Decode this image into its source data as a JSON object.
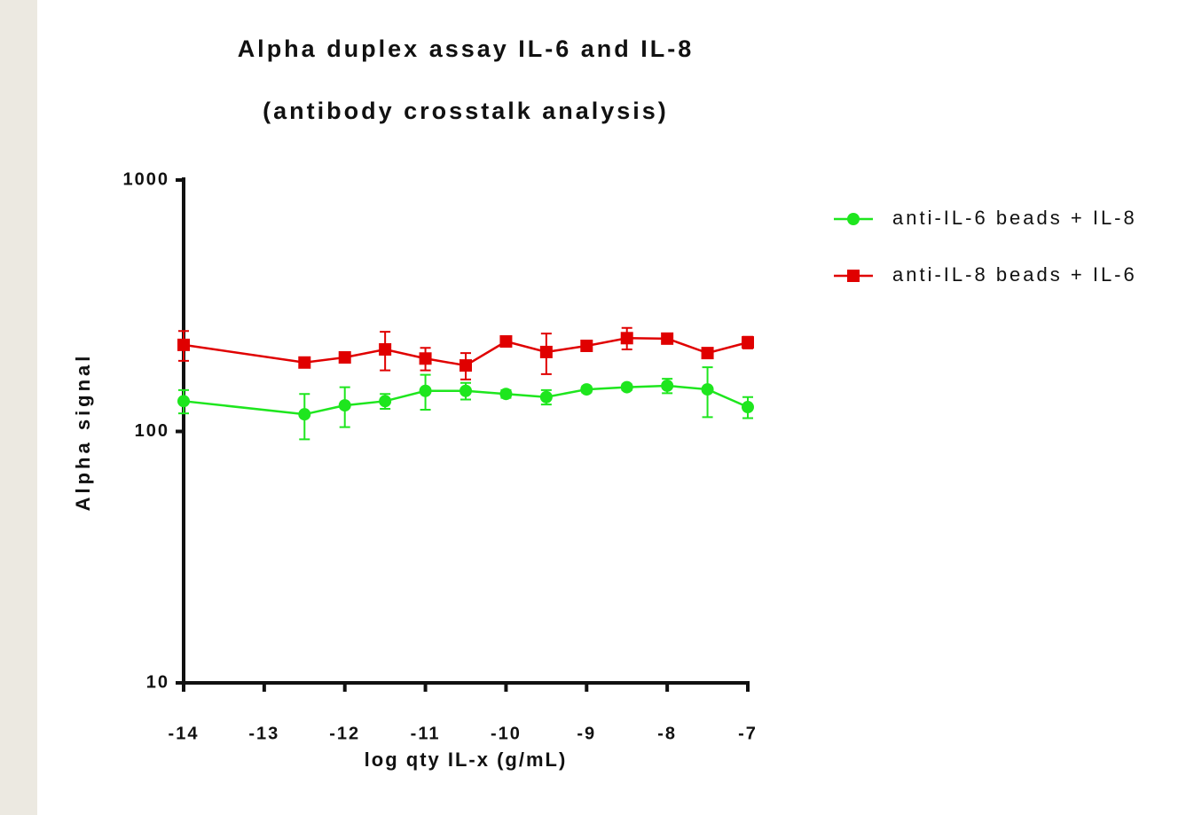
{
  "chart_data": {
    "type": "line",
    "title": [
      "Alpha duplex assay IL-6 and IL-8",
      "(antibody crosstalk analysis)"
    ],
    "x_label": "log qty IL-x (g/mL)",
    "y_label": "Alpha signal",
    "x": [
      -14,
      -12.5,
      -12,
      -11.5,
      -11,
      -10.5,
      -10,
      -9.5,
      -9,
      -8.5,
      -8,
      -7.5,
      -7
    ],
    "series": [
      {
        "name": "anti-IL-6 beads + IL-8",
        "color": "#1ee61e",
        "marker": "circle",
        "values": [
          132,
          117,
          127,
          132,
          145,
          145,
          141,
          137,
          147,
          150,
          152,
          147,
          125
        ],
        "errors": [
          14,
          24,
          23,
          9,
          23,
          11,
          5,
          9,
          4,
          4,
          10,
          33,
          12
        ]
      },
      {
        "name": "anti-IL-8 beads + IL-6",
        "color": "#e00000",
        "marker": "square",
        "values": [
          221,
          188,
          197,
          212,
          195,
          183,
          228,
          207,
          219,
          235,
          234,
          205,
          226
        ],
        "errors": [
          30,
          5,
          8,
          37,
          20,
          22,
          8,
          38,
          8,
          23,
          5,
          8,
          12
        ]
      }
    ],
    "xlim": [
      -14,
      -7
    ],
    "xticks": [
      -14,
      -13,
      -12,
      -11,
      -10,
      -9,
      -8,
      -7
    ],
    "ylim": [
      10,
      1000
    ],
    "yticks": [
      10,
      100,
      1000
    ],
    "y_scale": "log",
    "grid": false,
    "legend": "right"
  }
}
